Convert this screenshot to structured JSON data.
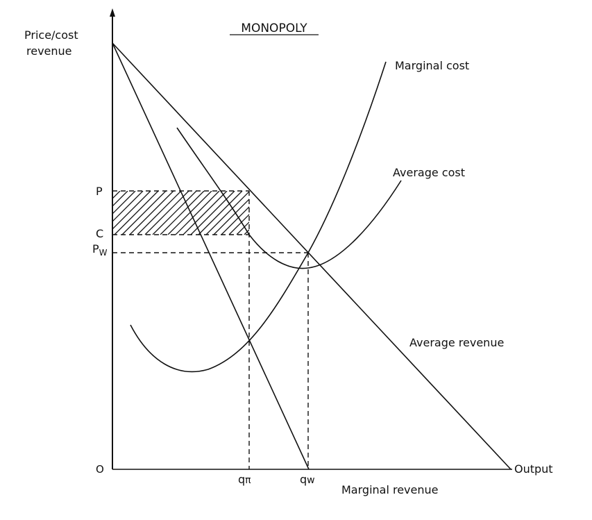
{
  "title": "MONOPOLY",
  "y_axis_label_line1": "Price/cost",
  "y_axis_label_line2": "revenue",
  "x_axis_label": "Output",
  "origin_label": "O",
  "y_ticks": {
    "p": "P",
    "c": "C",
    "pw": "P",
    "pw_sub": "W"
  },
  "x_ticks": {
    "qpi": "q",
    "qpi_sub": "π",
    "qw": "q",
    "qw_sub": "w"
  },
  "curve_labels": {
    "marginal_cost": "Marginal cost",
    "average_cost": "Average cost",
    "average_revenue": "Average revenue",
    "marginal_revenue": "Marginal revenue"
  },
  "colors": {
    "ink": "#111111",
    "background": "#ffffff"
  }
}
